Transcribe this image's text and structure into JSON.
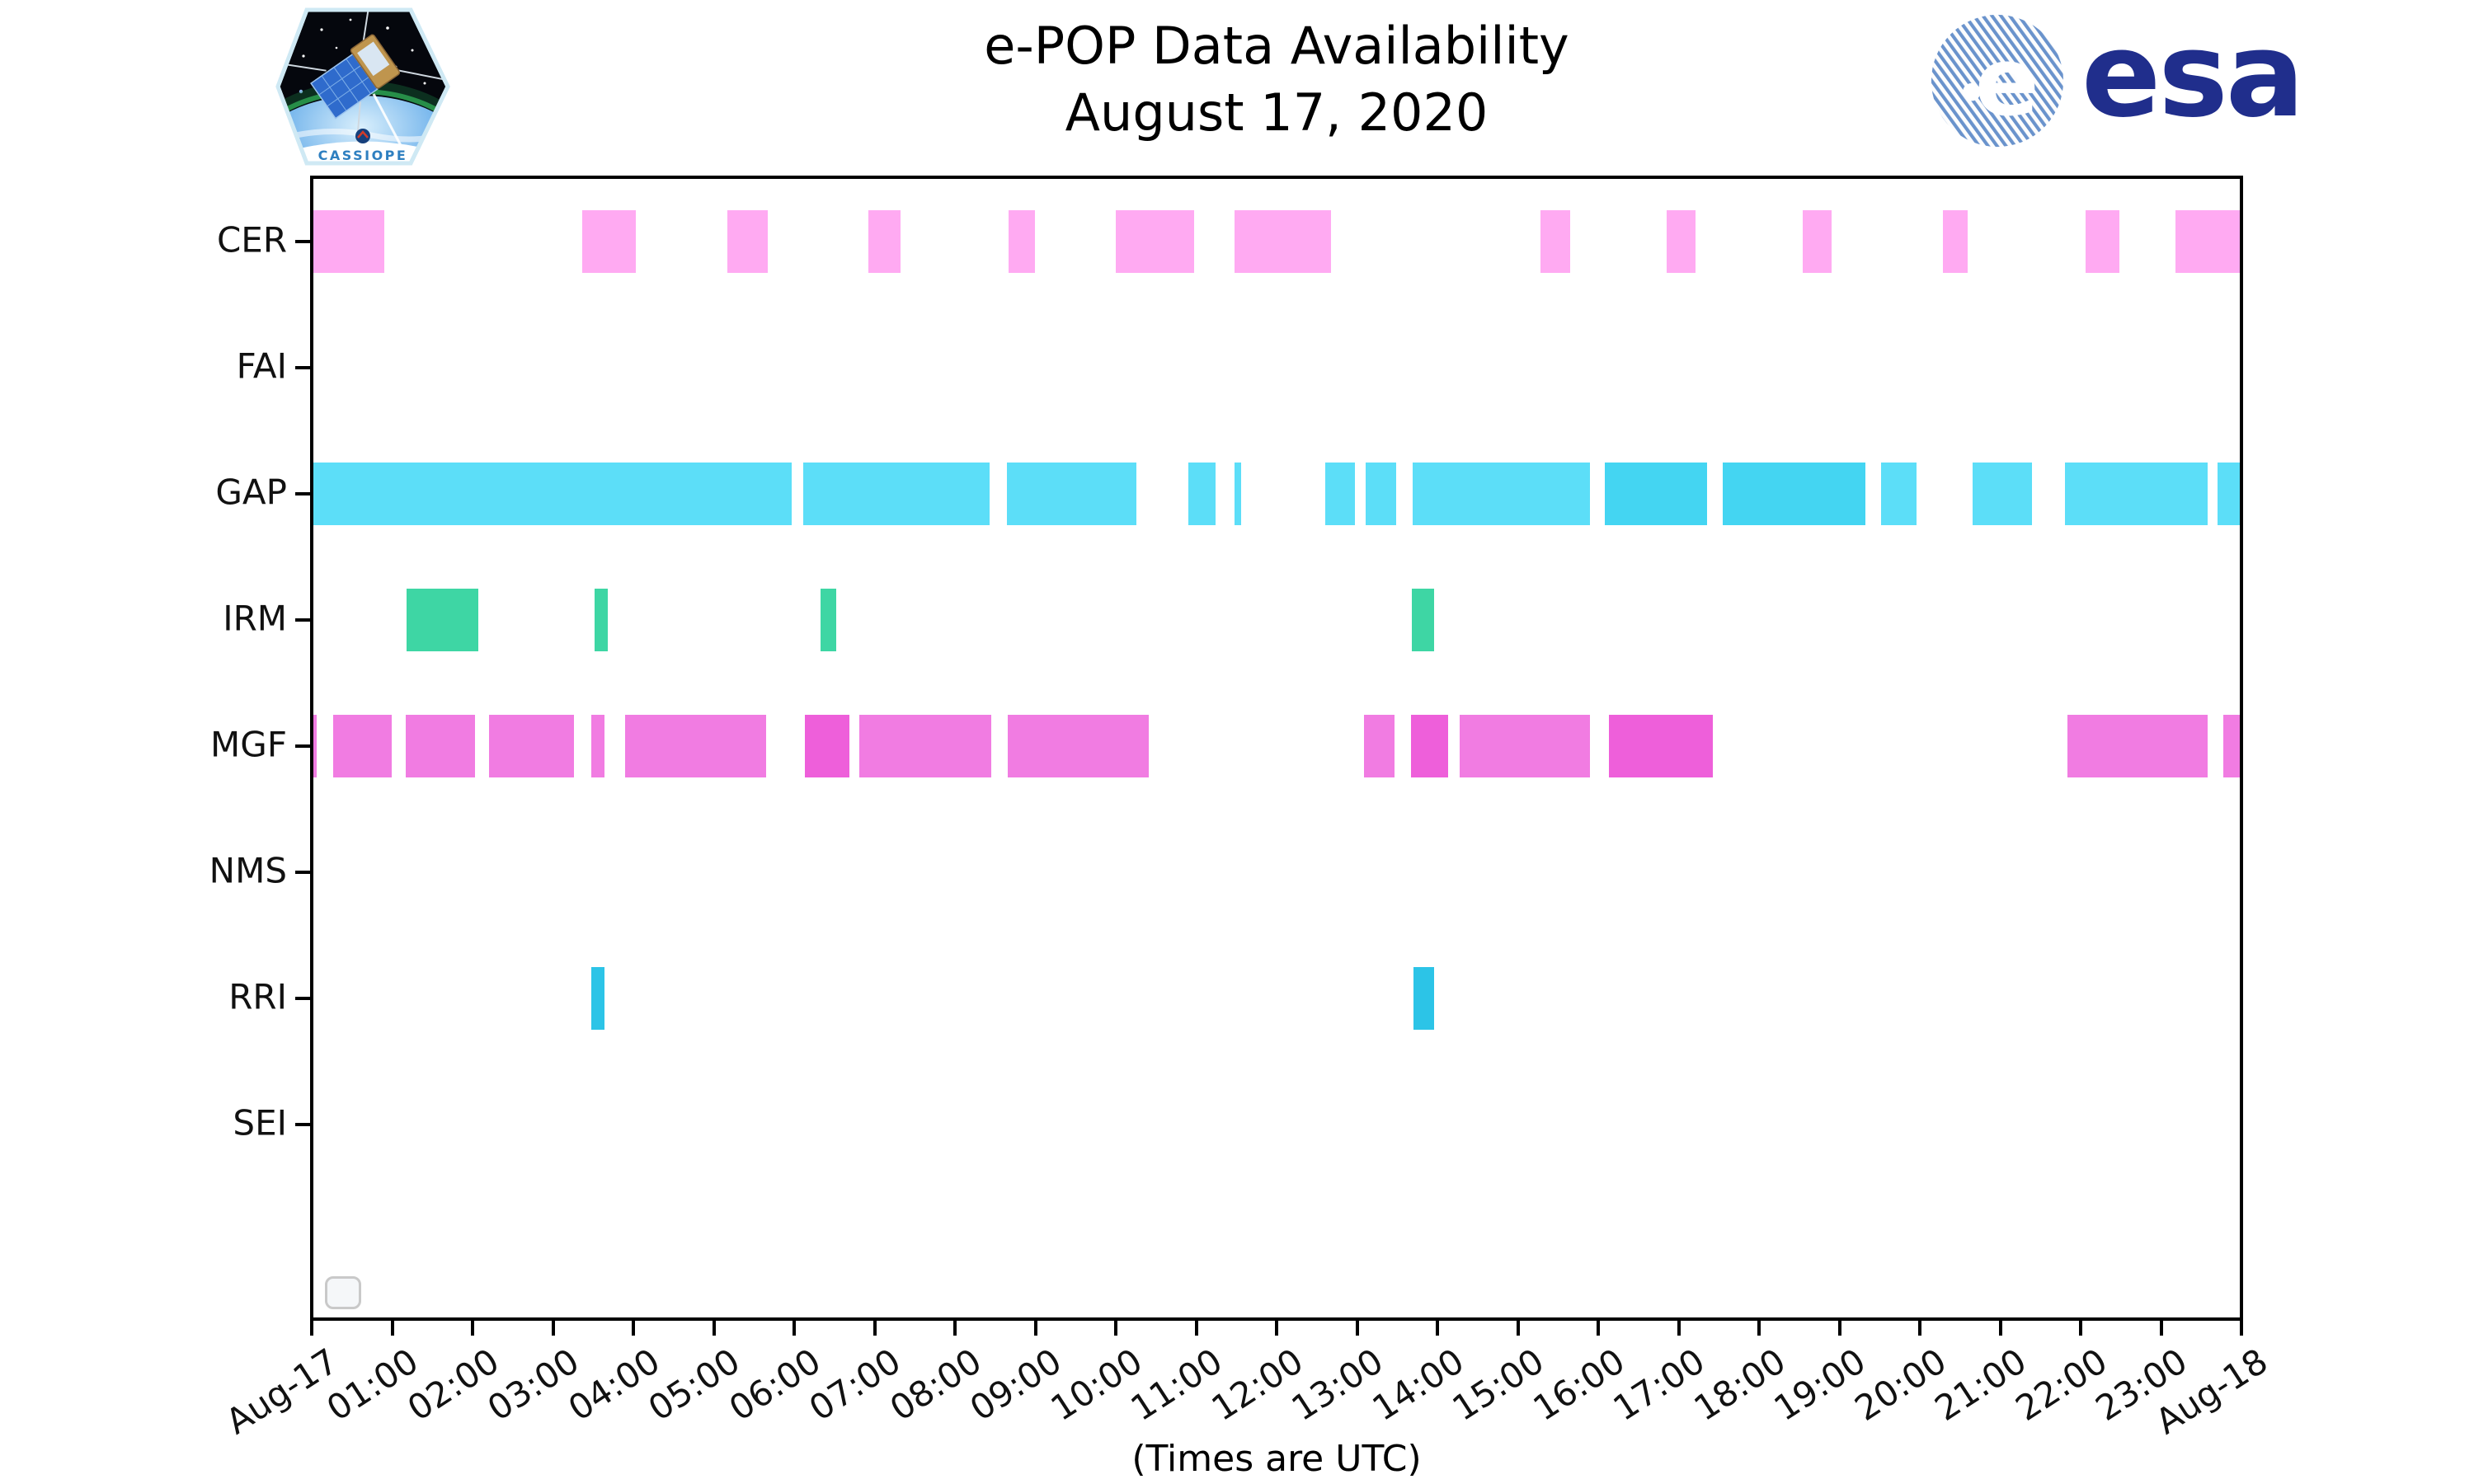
{
  "header": {
    "title_line1": "e-POP Data Availability",
    "title_line2": "August 17, 2020",
    "cassiope_label": "CASSIOPE",
    "esa_label": "esa"
  },
  "axis": {
    "x_tick_labels": [
      "Aug-17",
      "01:00",
      "02:00",
      "03:00",
      "04:00",
      "05:00",
      "06:00",
      "07:00",
      "08:00",
      "09:00",
      "10:00",
      "11:00",
      "12:00",
      "13:00",
      "14:00",
      "15:00",
      "16:00",
      "17:00",
      "18:00",
      "19:00",
      "20:00",
      "21:00",
      "22:00",
      "23:00",
      "Aug-18"
    ],
    "caption": "(Times are UTC)"
  },
  "chart_data": {
    "type": "gantt",
    "x_unit": "hours UTC",
    "x_range": [
      0,
      24
    ],
    "grid": false,
    "rows": [
      {
        "label": "CER",
        "color": "#ffaaf2",
        "color_alt": "#ffaaf2",
        "intervals": [
          [
            0,
            0.9
          ],
          [
            3.36,
            4.03
          ],
          [
            5.17,
            5.67
          ],
          [
            6.92,
            7.32
          ],
          [
            8.67,
            8.99
          ],
          [
            10.0,
            10.97
          ],
          [
            11.48,
            12.68
          ],
          [
            15.28,
            15.65
          ],
          [
            16.85,
            17.21
          ],
          [
            18.54,
            18.9
          ],
          [
            20.29,
            20.6
          ],
          [
            22.06,
            22.48
          ],
          [
            23.18,
            24.0
          ]
        ]
      },
      {
        "label": "FAI",
        "color": "",
        "color_alt": "",
        "intervals": []
      },
      {
        "label": "GAP",
        "color": "#5cdef8",
        "color_alt": "#44d5f2",
        "intervals": [
          [
            0,
            5.97
          ],
          [
            6.11,
            8.43
          ],
          [
            8.65,
            10.26
          ],
          [
            10.9,
            11.24
          ],
          [
            11.48,
            11.56
          ],
          [
            12.6,
            12.97
          ],
          [
            13.11,
            13.49
          ],
          [
            13.69,
            15.9
          ],
          [
            16.08,
            17.35,
            1
          ],
          [
            17.55,
            19.32,
            1
          ],
          [
            19.52,
            19.96
          ],
          [
            20.66,
            21.39
          ],
          [
            21.81,
            23.58
          ],
          [
            23.7,
            24.0
          ]
        ]
      },
      {
        "label": "IRM",
        "color": "#3ed6a4",
        "color_alt": "#3ed6a4",
        "intervals": [
          [
            1.18,
            2.07
          ],
          [
            3.52,
            3.68
          ],
          [
            6.33,
            6.52
          ],
          [
            13.68,
            13.96
          ]
        ]
      },
      {
        "label": "MGF",
        "color": "#f17ce2",
        "color_alt": "#ee5fda",
        "intervals": [
          [
            0,
            0.06
          ],
          [
            0.27,
            0.99
          ],
          [
            1.17,
            2.03
          ],
          [
            2.21,
            3.26
          ],
          [
            3.48,
            3.64
          ],
          [
            3.9,
            5.65
          ],
          [
            6.13,
            6.69,
            1
          ],
          [
            6.81,
            8.45
          ],
          [
            8.66,
            10.41
          ],
          [
            13.09,
            13.47
          ],
          [
            13.67,
            14.13,
            1
          ],
          [
            14.28,
            15.9
          ],
          [
            16.13,
            17.43,
            1
          ],
          [
            21.84,
            23.58
          ],
          [
            23.77,
            24.0
          ]
        ]
      },
      {
        "label": "NMS",
        "color": "",
        "color_alt": "",
        "intervals": []
      },
      {
        "label": "RRI",
        "color": "#2cc4e7",
        "color_alt": "#2cc4e7",
        "intervals": [
          [
            3.48,
            3.64
          ],
          [
            13.7,
            13.96
          ]
        ]
      },
      {
        "label": "SEI",
        "color": "",
        "color_alt": "",
        "intervals": []
      }
    ]
  },
  "colors": {
    "axis": "#000000",
    "esa_blue": "#202e8c",
    "esa_stripe": "#6a93cc",
    "cassiope_text": "#2e7fc0",
    "legend_box_border": "#c9c9c9"
  }
}
